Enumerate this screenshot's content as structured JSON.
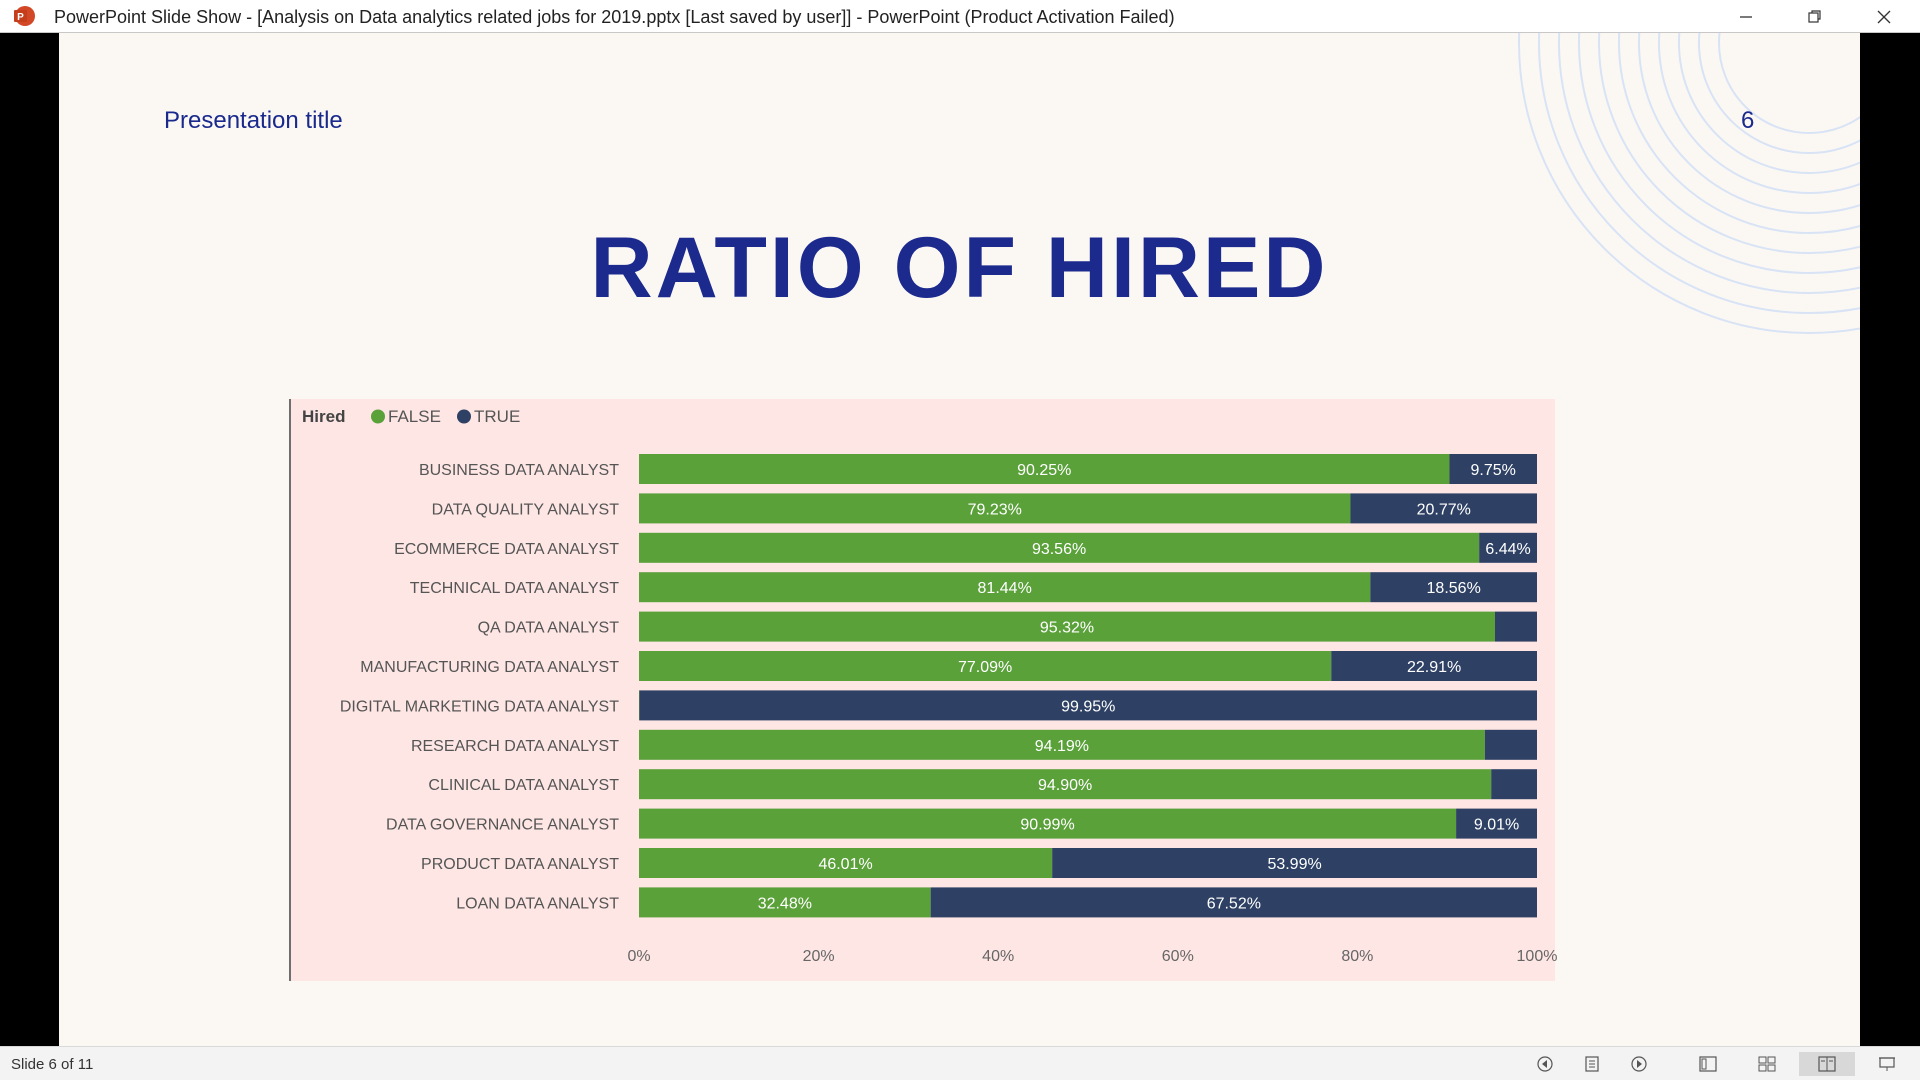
{
  "window": {
    "title": "PowerPoint Slide Show - [Analysis on Data analytics related jobs for 2019.pptx [Last saved by user]] - PowerPoint (Product Activation Failed)",
    "app_icon": "powerpoint-icon",
    "controls": [
      "minimize-icon",
      "restore-icon",
      "close-icon"
    ]
  },
  "slide": {
    "presentation_title": "Presentation title",
    "slide_number": "6",
    "heading": "RATIO OF HIRED"
  },
  "chart_data": {
    "type": "bar",
    "orientation": "horizontal",
    "stacked": "100%",
    "legend_title": "Hired",
    "legend_position": "top-left",
    "categories": [
      "BUSINESS DATA ANALYST",
      "DATA QUALITY ANALYST",
      "ECOMMERCE DATA ANALYST",
      "TECHNICAL DATA ANALYST",
      "QA DATA ANALYST",
      "MANUFACTURING DATA ANALYST",
      "DIGITAL MARKETING DATA ANALYST",
      "RESEARCH DATA ANALYST",
      "CLINICAL DATA ANALYST",
      "DATA GOVERNANCE ANALYST",
      "PRODUCT DATA ANALYST",
      "LOAN DATA ANALYST"
    ],
    "series": [
      {
        "name": "FALSE",
        "color": "#5aa13a",
        "values": [
          90.25,
          79.23,
          93.56,
          81.44,
          95.32,
          77.09,
          0.05,
          94.19,
          94.9,
          90.99,
          46.01,
          32.48
        ],
        "labels": [
          "90.25%",
          "79.23%",
          "93.56%",
          "81.44%",
          "95.32%",
          "77.09%",
          "",
          "94.19%",
          "94.90%",
          "90.99%",
          "46.01%",
          "32.48%"
        ]
      },
      {
        "name": "TRUE",
        "color": "#2e4164",
        "values": [
          9.75,
          20.77,
          6.44,
          18.56,
          4.68,
          22.91,
          99.95,
          5.81,
          5.1,
          9.01,
          53.99,
          67.52
        ],
        "labels": [
          "9.75%",
          "20.77%",
          "6.44%",
          "18.56%",
          "",
          "22.91%",
          "99.95%",
          "",
          "",
          "9.01%",
          "53.99%",
          "67.52%"
        ]
      }
    ],
    "x_ticks": [
      "0%",
      "20%",
      "40%",
      "60%",
      "80%",
      "100%"
    ],
    "xlim": [
      0,
      100
    ],
    "grid": false
  },
  "statusbar": {
    "slide_info": "Slide 6 of 11",
    "buttons": [
      "previous-slide-icon",
      "notes-icon",
      "next-slide-icon",
      "normal-view-icon",
      "slide-sorter-icon",
      "reading-view-icon",
      "slideshow-icon"
    ]
  }
}
